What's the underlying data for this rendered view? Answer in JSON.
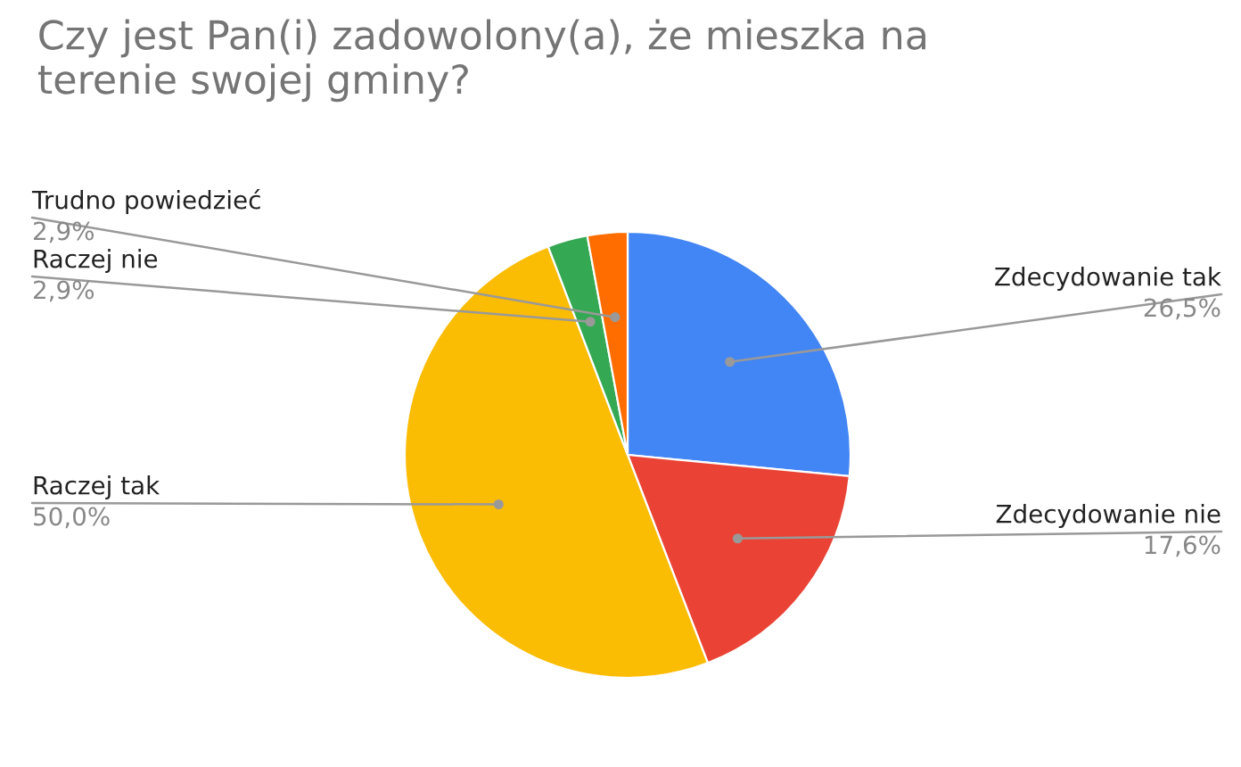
{
  "chart_data": {
    "type": "pie",
    "title": "Czy jest Pan(i) zadowolony(a), że mieszka na\nterenie swojej gminy?",
    "categories": [
      "Zdecydowanie tak",
      "Zdecydowanie nie",
      "Raczej tak",
      "Raczej nie",
      "Trudno powiedzieć"
    ],
    "values": [
      26.5,
      17.6,
      50.0,
      2.9,
      2.9
    ],
    "value_labels": [
      "26,5%",
      "17,6%",
      "50,0%",
      "2,9%",
      "2,9%"
    ],
    "colors": [
      "#4285f4",
      "#ea4335",
      "#fbbc04",
      "#34a853",
      "#ff6d01"
    ],
    "legend": false
  }
}
